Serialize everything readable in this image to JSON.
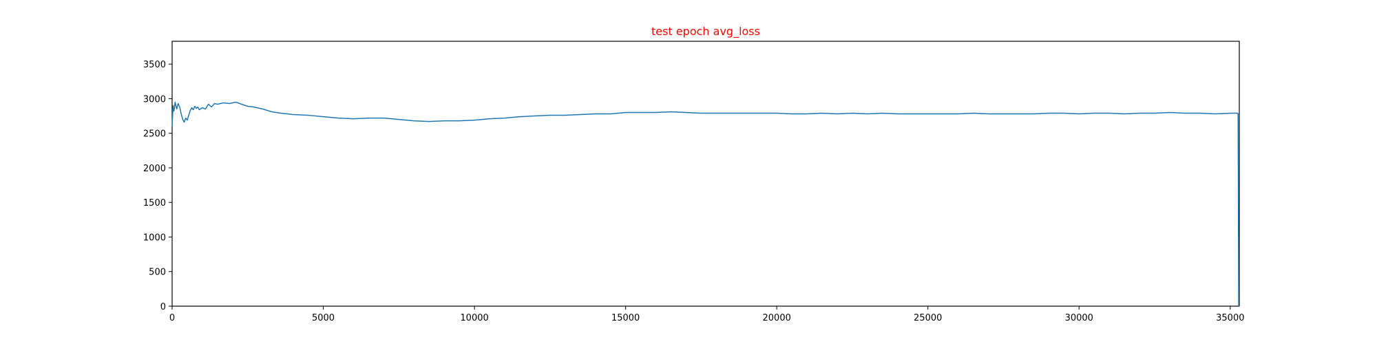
{
  "chart_data": {
    "type": "line",
    "title": "test epoch avg_loss",
    "title_color": "#ff0000",
    "xlabel": "",
    "ylabel": "",
    "xlim": [
      0,
      35300
    ],
    "ylim": [
      0,
      3830
    ],
    "grid": false,
    "legend": "none",
    "x_ticks": [
      0,
      5000,
      10000,
      15000,
      20000,
      25000,
      30000,
      35000
    ],
    "y_ticks": [
      0,
      500,
      1000,
      1500,
      2000,
      2500,
      3000,
      3500
    ],
    "series": [
      {
        "color": "#1f77b4",
        "x": [
          0,
          30,
          60,
          100,
          150,
          200,
          250,
          300,
          350,
          400,
          450,
          500,
          550,
          600,
          650,
          700,
          750,
          800,
          850,
          900,
          1000,
          1100,
          1200,
          1300,
          1400,
          1500,
          1700,
          1900,
          2100,
          2300,
          2500,
          2700,
          3000,
          3300,
          3600,
          4000,
          4500,
          5000,
          5500,
          6000,
          6500,
          7000,
          7500,
          8000,
          8500,
          9000,
          9500,
          10000,
          10500,
          11000,
          11500,
          12000,
          12500,
          13000,
          13500,
          14000,
          14500,
          15000,
          15500,
          16000,
          16500,
          17000,
          17500,
          18000,
          18500,
          19000,
          19500,
          20000,
          20500,
          21000,
          21500,
          22000,
          22500,
          23000,
          23500,
          24000,
          24500,
          25000,
          25500,
          26000,
          26500,
          27000,
          27500,
          28000,
          28500,
          29000,
          29500,
          30000,
          30500,
          31000,
          31500,
          32000,
          32500,
          33000,
          33500,
          34000,
          34500,
          35000,
          35250,
          35260,
          35270,
          35280
        ],
        "y": [
          2600,
          2900,
          2820,
          2950,
          2850,
          2930,
          2880,
          2780,
          2700,
          2660,
          2720,
          2690,
          2760,
          2830,
          2870,
          2840,
          2890,
          2860,
          2880,
          2840,
          2870,
          2850,
          2920,
          2880,
          2930,
          2920,
          2940,
          2930,
          2950,
          2920,
          2890,
          2880,
          2850,
          2810,
          2790,
          2770,
          2760,
          2740,
          2720,
          2710,
          2720,
          2720,
          2700,
          2680,
          2670,
          2680,
          2680,
          2690,
          2710,
          2720,
          2740,
          2750,
          2760,
          2760,
          2770,
          2780,
          2780,
          2800,
          2800,
          2800,
          2810,
          2800,
          2790,
          2790,
          2790,
          2790,
          2790,
          2790,
          2780,
          2780,
          2790,
          2780,
          2790,
          2780,
          2790,
          2780,
          2780,
          2780,
          2780,
          2780,
          2790,
          2780,
          2780,
          2780,
          2780,
          2790,
          2790,
          2780,
          2790,
          2790,
          2780,
          2790,
          2790,
          2800,
          2790,
          2790,
          2780,
          2790,
          2790,
          2780,
          1500,
          0
        ]
      }
    ]
  }
}
